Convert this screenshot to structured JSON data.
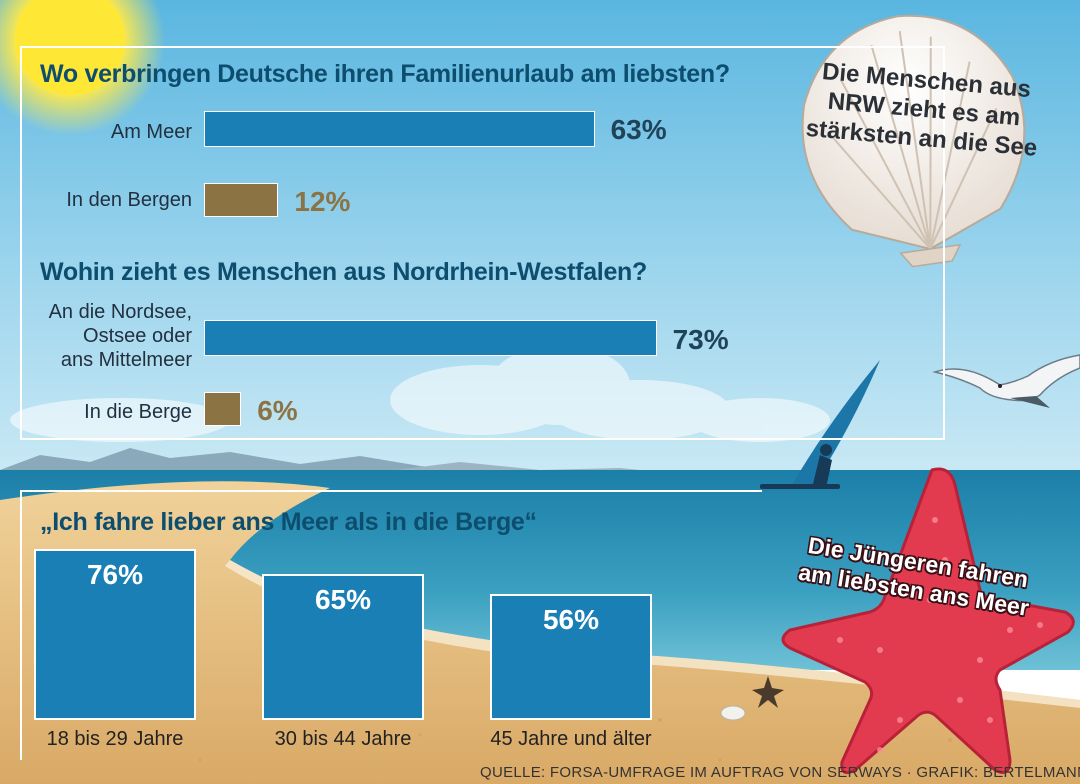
{
  "colors": {
    "sea_blue": "#1a7fb5",
    "mountain_brown": "#8b7344",
    "value_dark": "#20435a",
    "title_teal": "#0d4d6e",
    "starfish_red": "#e33a4e",
    "sky": "#7fc6e6",
    "sand": "#e3bd7e"
  },
  "illustration": {
    "scene": "beach",
    "elements": [
      "sun-icon",
      "scallop-shell-icon",
      "starfish-icon",
      "seagull-icon",
      "windsurfer-icon",
      "small-starfish-icon",
      "pebble-icon"
    ]
  },
  "chart_data": [
    {
      "type": "bar",
      "orientation": "horizontal",
      "title": "Wo verbringen Deutsche ihren Familienurlaub am liebsten?",
      "categories": [
        "Am Meer",
        "In den Bergen"
      ],
      "values": [
        63,
        12
      ],
      "value_labels": [
        "63%",
        "12%"
      ],
      "colors": [
        "#1a7fb5",
        "#8b7344"
      ],
      "unit": "%",
      "xlim": [
        0,
        100
      ],
      "grid": false
    },
    {
      "type": "bar",
      "orientation": "horizontal",
      "title": "Wohin zieht es Menschen aus Nordrhein-Westfalen?",
      "categories": [
        "An die Nordsee, Ostsee oder ans Mittelmeer",
        "In die Berge"
      ],
      "category_lines": [
        [
          "An die Nordsee,",
          "Ostsee oder",
          "ans Mittelmeer"
        ],
        [
          "In die Berge"
        ]
      ],
      "values": [
        73,
        6
      ],
      "value_labels": [
        "73%",
        "6%"
      ],
      "colors": [
        "#1a7fb5",
        "#8b7344"
      ],
      "unit": "%",
      "xlim": [
        0,
        100
      ],
      "grid": false
    },
    {
      "type": "bar",
      "orientation": "vertical",
      "title": "„Ich fahre lieber ans Meer als in die Berge“",
      "categories": [
        "18 bis 29 Jahre",
        "30 bis 44 Jahre",
        "45 Jahre und älter"
      ],
      "values": [
        76,
        65,
        56
      ],
      "value_labels": [
        "76%",
        "65%",
        "56%"
      ],
      "colors": [
        "#1a7fb5",
        "#1a7fb5",
        "#1a7fb5"
      ],
      "unit": "%",
      "ylim": [
        0,
        100
      ],
      "grid": false
    }
  ],
  "callouts": {
    "shell": "Die Menschen aus NRW zieht es am stärksten an die See",
    "starfish": "Die Jüngeren fahren am liebsten ans Meer"
  },
  "source": "QUELLE: FORSA-UMFRAGE IM AUFTRAG VON SERWAYS · GRAFIK: BERTELMANN"
}
